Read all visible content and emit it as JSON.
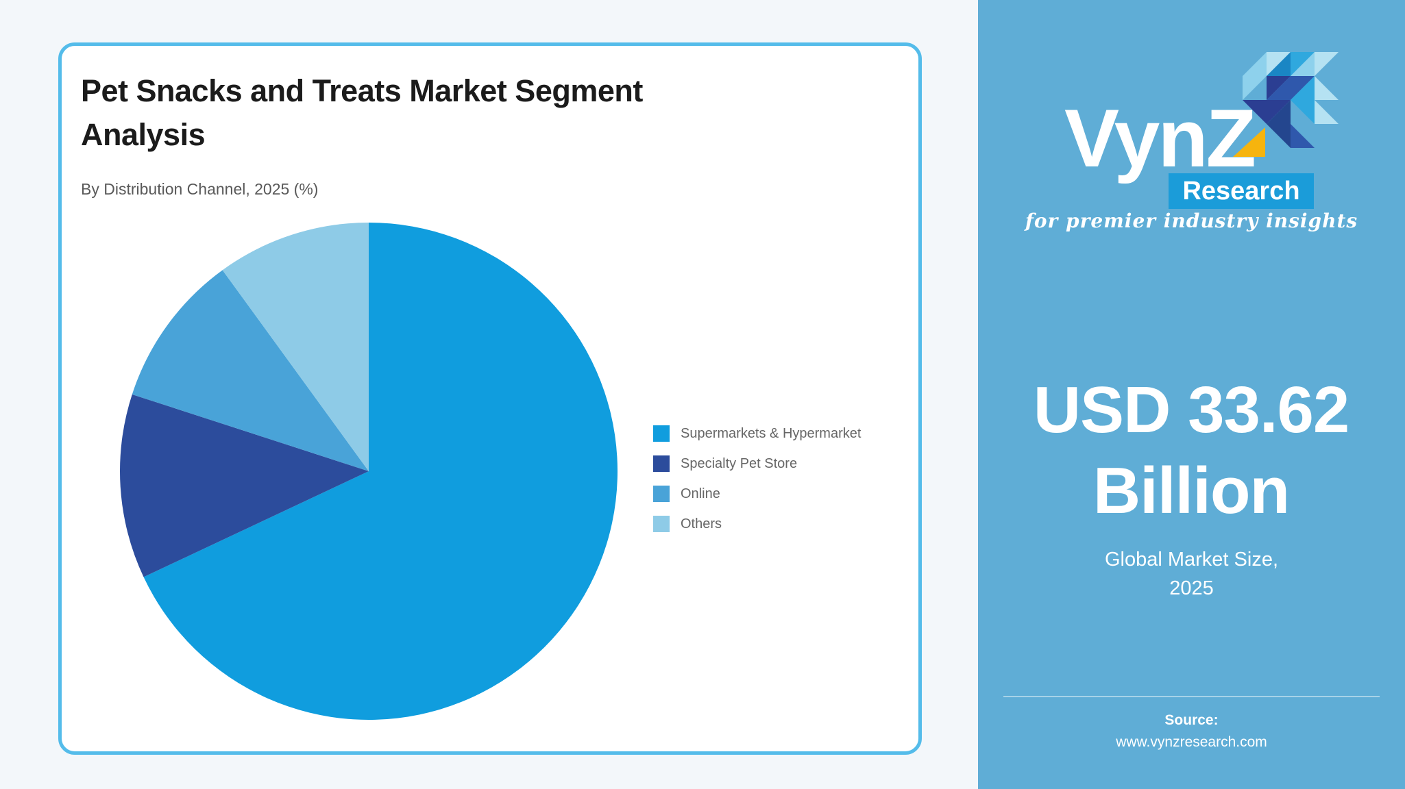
{
  "page": {
    "background": "#F3F7FA"
  },
  "card": {
    "border_color": "#54BCEA",
    "title": "Pet Snacks and Treats Market Segment Analysis",
    "subtitle": "By Distribution Channel, 2025 (%)"
  },
  "chart_data": {
    "type": "pie",
    "title": "Pet Snacks and Treats Market Segment Analysis",
    "subtitle": "By Distribution Channel, 2025 (%)",
    "unit": "%",
    "start_angle_deg": 0,
    "direction": "clockwise",
    "legend_position": "right",
    "grid": false,
    "segments": [
      {
        "label": "Supermarkets & Hypermarket",
        "value": 68,
        "color": "#109DDE"
      },
      {
        "label": "Specialty Pet Store",
        "value": 12,
        "color": "#2C4C9C"
      },
      {
        "label": "Online",
        "value": 10,
        "color": "#49A3D8"
      },
      {
        "label": "Others",
        "value": 10,
        "color": "#8ECBE7"
      }
    ]
  },
  "panel": {
    "background": "#5FADD6",
    "logo": {
      "brand": "VynZ",
      "sub_brand": "Research",
      "tagline": "for premier industry insights",
      "research_bar_color": "#1B9CD9",
      "accent_yellow": "#F6B40E",
      "mosaic_colors": [
        "#8ED1EC",
        "#B5E2F2",
        "#1A86C4",
        "#2FA8DE",
        "#2B3E92",
        "#2F58AC",
        "#24468E"
      ]
    },
    "market_size": {
      "value": "USD 33.62 Billion",
      "caption_line1": "Global Market Size,",
      "caption_line2": "2025"
    },
    "source": {
      "label": "Source:",
      "url": "www.vynzresearch.com"
    }
  }
}
